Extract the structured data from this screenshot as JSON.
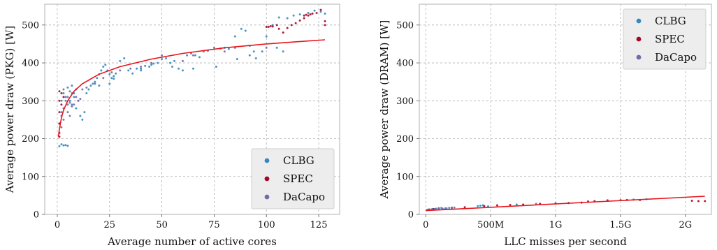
{
  "colors": {
    "CLBG": "#348ABD",
    "SPEC": "#A60628",
    "DaCapo": "#7A68A6",
    "fit": "#E8151B",
    "grid": "#b0b0b0",
    "axes_bg": "#ffffff"
  },
  "chart_data": [
    {
      "type": "scatter",
      "title": "",
      "xlabel": "Average number of active cores",
      "ylabel": "Average power draw (PKG) [W]",
      "xlim": [
        -6,
        135
      ],
      "ylim": [
        0,
        555
      ],
      "xticks": [
        0,
        25,
        50,
        75,
        100,
        125
      ],
      "xtick_labels": [
        "0",
        "25",
        "50",
        "75",
        "100",
        "125"
      ],
      "yticks": [
        0,
        100,
        200,
        300,
        400,
        500
      ],
      "ytick_labels": [
        "0",
        "100",
        "200",
        "300",
        "400",
        "500"
      ],
      "grid": true,
      "legend_position": "bottom-right",
      "series": [
        {
          "name": "CLBG",
          "points": [
            [
              1,
              180
            ],
            [
              2,
              185
            ],
            [
              3,
              182
            ],
            [
              4,
              183
            ],
            [
              5,
              181
            ],
            [
              1,
              240
            ],
            [
              2,
              300
            ],
            [
              3,
              320
            ],
            [
              4,
              310
            ],
            [
              2,
              270
            ],
            [
              3,
              330
            ],
            [
              5,
              335
            ],
            [
              6,
              325
            ],
            [
              7,
              340
            ],
            [
              8,
              320
            ],
            [
              9,
              330
            ],
            [
              10,
              300
            ],
            [
              11,
              260
            ],
            [
              12,
              250
            ],
            [
              13,
              270
            ],
            [
              14,
              320
            ],
            [
              15,
              330
            ],
            [
              16,
              340
            ],
            [
              17,
              345
            ],
            [
              18,
              350
            ],
            [
              19,
              360
            ],
            [
              20,
              370
            ],
            [
              21,
              380
            ],
            [
              22,
              390
            ],
            [
              23,
              395
            ],
            [
              24,
              380
            ],
            [
              25,
              370
            ],
            [
              26,
              360
            ],
            [
              27,
              365
            ],
            [
              28,
              372
            ],
            [
              30,
              405
            ],
            [
              32,
              412
            ],
            [
              34,
              380
            ],
            [
              36,
              372
            ],
            [
              38,
              385
            ],
            [
              40,
              380
            ],
            [
              42,
              392
            ],
            [
              44,
              390
            ],
            [
              46,
              398
            ],
            [
              48,
              400
            ],
            [
              50,
              410
            ],
            [
              52,
              412
            ],
            [
              54,
              400
            ],
            [
              56,
              405
            ],
            [
              58,
              385
            ],
            [
              60,
              380
            ],
            [
              62,
              420
            ],
            [
              64,
              425
            ],
            [
              66,
              420
            ],
            [
              68,
              415
            ],
            [
              70,
              430
            ],
            [
              72,
              432
            ],
            [
              75,
              440
            ],
            [
              78,
              438
            ],
            [
              80,
              440
            ],
            [
              82,
              437
            ],
            [
              85,
              470
            ],
            [
              88,
              490
            ],
            [
              90,
              485
            ],
            [
              92,
              420
            ],
            [
              95,
              412
            ],
            [
              98,
              430
            ],
            [
              100,
              470
            ],
            [
              103,
              500
            ],
            [
              106,
              520
            ],
            [
              108,
              430
            ],
            [
              110,
              518
            ],
            [
              113,
              525
            ],
            [
              116,
              528
            ],
            [
              120,
              532
            ],
            [
              123,
              538
            ],
            [
              126,
              535
            ],
            [
              128,
              530
            ],
            [
              5,
              290
            ],
            [
              6,
              300
            ],
            [
              7,
              290
            ],
            [
              8,
              310
            ],
            [
              9,
              280
            ],
            [
              20,
              340
            ],
            [
              25,
              345
            ],
            [
              27,
              358
            ],
            [
              40,
              385
            ],
            [
              45,
              395
            ],
            [
              55,
              390
            ],
            [
              65,
              385
            ],
            [
              76,
              390
            ],
            [
              86,
              410
            ],
            [
              94,
              430
            ],
            [
              105,
              440
            ]
          ]
        },
        {
          "name": "SPEC",
          "points": [
            [
              1,
              325
            ],
            [
              1,
              300
            ],
            [
              1,
              270
            ],
            [
              1,
              240
            ],
            [
              1,
              215
            ],
            [
              1,
              205
            ],
            [
              2,
              320
            ],
            [
              2,
              290
            ],
            [
              3,
              310
            ],
            [
              100,
              495
            ],
            [
              101,
              495
            ],
            [
              102,
              497
            ],
            [
              103,
              496
            ],
            [
              105,
              500
            ],
            [
              106,
              490
            ],
            [
              108,
              480
            ],
            [
              110,
              492
            ],
            [
              112,
              500
            ],
            [
              114,
              505
            ],
            [
              116,
              512
            ],
            [
              118,
              518
            ],
            [
              120,
              525
            ],
            [
              122,
              530
            ],
            [
              124,
              532
            ],
            [
              126,
              540
            ],
            [
              128,
              510
            ],
            [
              128,
              500
            ],
            [
              118,
              525
            ],
            [
              119,
              527
            ],
            [
              121,
              528
            ]
          ]
        },
        {
          "name": "DaCapo",
          "points": [
            [
              2,
              230
            ],
            [
              2,
              260
            ],
            [
              3,
              280
            ],
            [
              3,
              250
            ],
            [
              4,
              300
            ],
            [
              5,
              310
            ],
            [
              5,
              270
            ],
            [
              6,
              295
            ],
            [
              6,
              260
            ],
            [
              7,
              285
            ],
            [
              7,
              320
            ],
            [
              8,
              290
            ],
            [
              9,
              310
            ],
            [
              10,
              300
            ],
            [
              11,
              305
            ],
            [
              12,
              330
            ],
            [
              14,
              335
            ],
            [
              18,
              345
            ],
            [
              22,
              360
            ],
            [
              26,
              375
            ],
            [
              30,
              380
            ],
            [
              35,
              385
            ],
            [
              40,
              390
            ],
            [
              45,
              400
            ],
            [
              50,
              420
            ],
            [
              60,
              405
            ],
            [
              65,
              420
            ],
            [
              80,
              430
            ],
            [
              85,
              440
            ],
            [
              92,
              445
            ],
            [
              100,
              440
            ]
          ]
        }
      ],
      "fit_line": {
        "model": "logarithmic",
        "x": [
          0.5,
          1,
          2,
          3,
          5,
          8,
          12,
          20,
          30,
          45,
          60,
          80,
          100,
          115,
          128
        ],
        "y": [
          205,
          225,
          255,
          275,
          300,
          325,
          345,
          370,
          390,
          410,
          425,
          440,
          450,
          456,
          461
        ]
      }
    },
    {
      "type": "scatter",
      "title": "",
      "xlabel": "LLC misses per second",
      "ylabel": "Average power draw (DRAM) [W]",
      "xlim": [
        -0.05,
        2.2
      ],
      "ylim": [
        0,
        555
      ],
      "xticks": [
        0,
        0.5,
        1,
        1.5,
        2
      ],
      "xtick_labels": [
        "0",
        "500M",
        "1G",
        "1.5G",
        "2G"
      ],
      "yticks": [
        0,
        100,
        200,
        300,
        400,
        500
      ],
      "ytick_labels": [
        "0",
        "100",
        "200",
        "300",
        "400",
        "500"
      ],
      "grid": true,
      "legend_position": "top-right",
      "series": [
        {
          "name": "CLBG",
          "points": [
            [
              0.01,
              12
            ],
            [
              0.02,
              13
            ],
            [
              0.05,
              14
            ],
            [
              0.08,
              15
            ],
            [
              0.1,
              16
            ],
            [
              0.12,
              17
            ],
            [
              0.15,
              16
            ],
            [
              0.18,
              17
            ],
            [
              0.22,
              18
            ],
            [
              0.4,
              22
            ],
            [
              0.42,
              23
            ],
            [
              0.44,
              24
            ],
            [
              0.48,
              21
            ],
            [
              0.7,
              26
            ],
            [
              0.85,
              28
            ],
            [
              1.5,
              38
            ],
            [
              1.6,
              39
            ],
            [
              1.7,
              40
            ]
          ]
        },
        {
          "name": "SPEC",
          "points": [
            [
              0.03,
              13
            ],
            [
              0.06,
              14
            ],
            [
              0.1,
              16
            ],
            [
              0.2,
              17
            ],
            [
              0.3,
              19
            ],
            [
              0.45,
              22
            ],
            [
              0.55,
              24
            ],
            [
              0.65,
              25
            ],
            [
              0.75,
              26
            ],
            [
              0.88,
              28
            ],
            [
              1.0,
              29
            ],
            [
              1.1,
              30
            ],
            [
              1.2,
              31
            ],
            [
              1.25,
              34
            ],
            [
              1.3,
              35
            ],
            [
              1.4,
              37
            ],
            [
              1.55,
              38
            ],
            [
              1.65,
              38
            ],
            [
              2.05,
              36
            ],
            [
              2.1,
              35
            ],
            [
              2.15,
              35
            ]
          ]
        },
        {
          "name": "DaCapo",
          "points": [
            [
              0.01,
              11
            ],
            [
              0.03,
              12
            ],
            [
              0.05,
              13
            ],
            [
              0.07,
              14
            ],
            [
              0.1,
              15
            ],
            [
              0.13,
              15
            ],
            [
              0.16,
              16
            ],
            [
              0.2,
              18
            ]
          ]
        }
      ],
      "fit_line": {
        "model": "linear",
        "x": [
          0,
          2.15
        ],
        "y": [
          10,
          48
        ]
      }
    }
  ]
}
